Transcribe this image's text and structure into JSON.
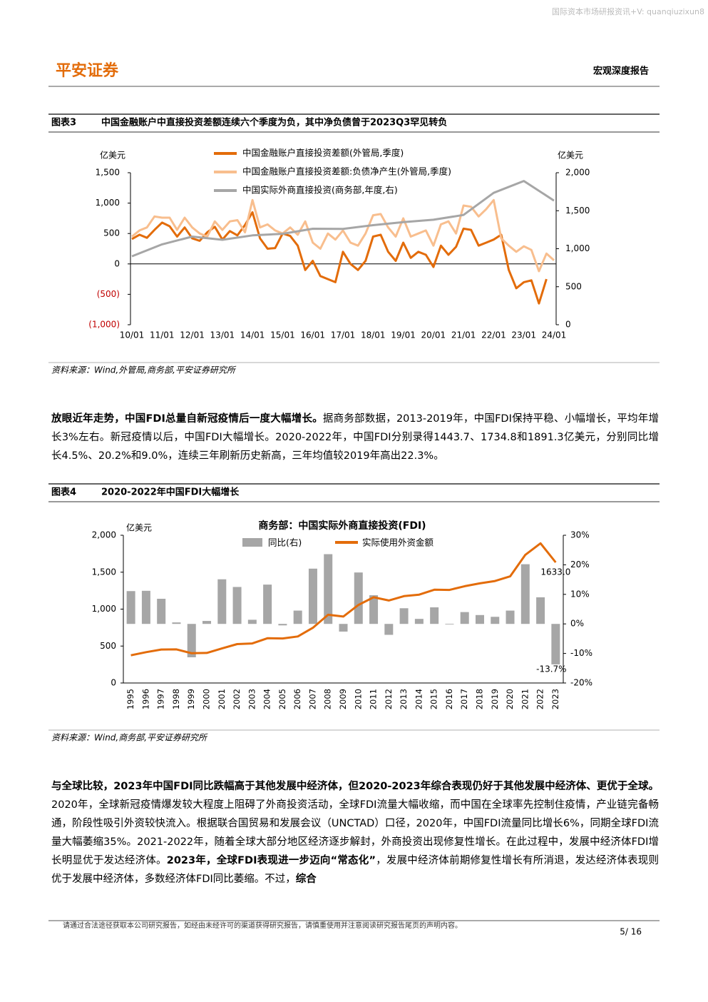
{
  "header": {
    "watermark": "国际资本市场研报资讯+V: quanqiuzixun8",
    "logo": "平安证券",
    "report_type": "宏观深度报告"
  },
  "chart_data": [
    {
      "type": "line",
      "label": "图表3",
      "caption": "中国金融账户中直接投资差额连续六个季度为负，其中净负债曾于2023Q3罕见转负",
      "ylabel": "亿美元",
      "y2label": "亿美元",
      "categories": [
        "10/01",
        null,
        null,
        null,
        "11/01",
        null,
        null,
        null,
        "12/01",
        null,
        null,
        null,
        "13/01",
        null,
        null,
        null,
        "14/01",
        null,
        null,
        null,
        "15/01",
        null,
        null,
        null,
        "16/01",
        null,
        null,
        null,
        "17/01",
        null,
        null,
        null,
        "18/01",
        null,
        null,
        null,
        "19/01",
        null,
        null,
        null,
        "20/01",
        null,
        null,
        null,
        "21/01",
        null,
        null,
        null,
        "22/01",
        null,
        null,
        null,
        "23/01",
        null,
        null,
        null,
        "24/01"
      ],
      "ylim": [
        -1000,
        1500
      ],
      "yticks": [
        {
          "value": -1000,
          "label": "(1,000)"
        },
        {
          "value": -500,
          "label": "(500)"
        },
        0,
        500,
        {
          "value": 1000,
          "label": "1,000"
        },
        {
          "value": 1500,
          "label": "1,500"
        }
      ],
      "y2lim": [
        0,
        2000
      ],
      "y2ticks": [
        0,
        500,
        {
          "value": 1000,
          "label": "1,000"
        },
        {
          "value": 1500,
          "label": "1,500"
        },
        {
          "value": 2000,
          "label": "2,000"
        }
      ],
      "series": [
        {
          "name": "中国金融账户直接投资差额(外管局,季度)",
          "color": "#E36C0A",
          "values": [
            410,
            480,
            430,
            560,
            680,
            620,
            450,
            600,
            420,
            380,
            520,
            610,
            400,
            540,
            470,
            640,
            850,
            420,
            250,
            260,
            500,
            460,
            300,
            -100,
            50,
            -200,
            -250,
            -300,
            200,
            0,
            -100,
            50,
            450,
            480,
            200,
            50,
            350,
            100,
            200,
            150,
            -50,
            300,
            150,
            280,
            580,
            560,
            300,
            350,
            400,
            480,
            -100,
            -400,
            -300,
            -270,
            -650,
            -250,
            null
          ]
        },
        {
          "name": "中国金融账户直接投资差额:负债净产生(外管局,季度)",
          "color": "#F8BE8E",
          "values": [
            450,
            550,
            600,
            780,
            760,
            760,
            560,
            760,
            600,
            500,
            450,
            700,
            560,
            700,
            720,
            520,
            1050,
            600,
            650,
            550,
            500,
            600,
            480,
            700,
            350,
            250,
            500,
            400,
            550,
            350,
            300,
            500,
            800,
            820,
            600,
            450,
            750,
            450,
            500,
            550,
            300,
            650,
            700,
            500,
            960,
            940,
            780,
            900,
            1050,
            420,
            300,
            200,
            290,
            230,
            -120,
            170,
            60
          ]
        },
        {
          "name": "中国实际外商直接投资(商务部,年度,右)",
          "color": "#A6A6A6",
          "axis": "y2",
          "x": [
            "10/01",
            "11/01",
            "12/01",
            "13/01",
            "14/01",
            "15/01",
            "16/01",
            "17/01",
            "18/01",
            "19/01",
            "20/01",
            "21/01",
            "22/01",
            "23/01",
            "24/01"
          ],
          "values": [
            900,
            1057,
            1160,
            1117,
            1176,
            1196,
            1263,
            1260,
            1310,
            1349,
            1381,
            1443.7,
            1734.8,
            1891.3,
            1633
          ]
        }
      ],
      "source": "资料来源：Wind,外管局,商务部,平安证券研究所"
    },
    {
      "type": "bar-line",
      "label": "图表4",
      "caption": "2020-2022年中国FDI大幅增长",
      "title": "商务部：中国实际外商直接投资(FDI)",
      "ylabel": "亿美元",
      "categories": [
        "1995",
        "1996",
        "1997",
        "1998",
        "1999",
        "2000",
        "2001",
        "2002",
        "2003",
        "2004",
        "2005",
        "2006",
        "2007",
        "2008",
        "2009",
        "2010",
        "2011",
        "2012",
        "2013",
        "2014",
        "2015",
        "2016",
        "2017",
        "2018",
        "2019",
        "2020",
        "2021",
        "2022",
        "2023"
      ],
      "ylim": [
        0,
        2000
      ],
      "yticks": [
        0,
        500,
        {
          "value": 1000,
          "label": "1,000"
        },
        {
          "value": 1500,
          "label": "1,500"
        },
        {
          "value": 2000,
          "label": "2,000"
        }
      ],
      "y2lim": [
        -20,
        30
      ],
      "y2ticks": [
        {
          "value": -20,
          "label": "-20%"
        },
        {
          "value": -10,
          "label": "-10%"
        },
        {
          "value": 0,
          "label": "0%"
        },
        {
          "value": 10,
          "label": "10%"
        },
        {
          "value": 20,
          "label": "20%"
        },
        {
          "value": 30,
          "label": "30%"
        }
      ],
      "series": [
        {
          "name": "同比(右)",
          "type": "bar",
          "axis": "y2",
          "color": "#A6A6A6",
          "values": [
            11.1,
            11.2,
            8.5,
            0.5,
            -11.3,
            1.0,
            15.1,
            12.5,
            1.4,
            13.3,
            -0.5,
            4.5,
            18.7,
            23.6,
            -2.6,
            17.4,
            9.7,
            -3.7,
            5.3,
            1.7,
            5.6,
            -0.2,
            4.0,
            3.0,
            2.4,
            4.5,
            20.2,
            9.0,
            -13.7
          ],
          "value_labels": [
            null,
            null,
            null,
            null,
            null,
            null,
            null,
            null,
            null,
            null,
            null,
            null,
            null,
            null,
            null,
            null,
            null,
            null,
            null,
            null,
            null,
            null,
            null,
            null,
            null,
            null,
            null,
            null,
            "-13.7%"
          ]
        },
        {
          "name": "实际使用外资金额",
          "type": "line",
          "color": "#E36C0A",
          "values": [
            375,
            417,
            453,
            455,
            403,
            407,
            468,
            527,
            535,
            606,
            603,
            630,
            748,
            924,
            900,
            1057,
            1160,
            1117,
            1176,
            1196,
            1263,
            1260,
            1310,
            1349,
            1381,
            1443.7,
            1734.8,
            1891.3,
            1633.0
          ],
          "value_labels": [
            null,
            null,
            null,
            null,
            null,
            null,
            null,
            null,
            null,
            null,
            null,
            null,
            null,
            null,
            null,
            null,
            null,
            null,
            null,
            null,
            null,
            null,
            null,
            null,
            null,
            null,
            null,
            null,
            "1633.0"
          ]
        }
      ],
      "source": "资料来源：Wind,商务部,平安证券研究所"
    }
  ],
  "paragraphs": [
    {
      "runs": [
        {
          "text": "放眼近年走势，中国FDI总量自新冠疫情后一度大幅增长。",
          "bold": true
        },
        {
          "text": "据商务部数据，2013-2019年，中国FDI保持平稳、小幅增长，平均年增长3%左右。新冠疫情以后，中国FDI大幅增长。2020-2022年，中国FDI分别录得1443.7、1734.8和1891.3亿美元，分别同比增长4.5%、20.2%和9.0%，连续三年刷新历史新高，三年均值较2019年高出22.3%。",
          "bold": false
        }
      ]
    },
    {
      "runs": [
        {
          "text": "与全球比较，2023年中国FDI同比跌幅高于其他发展中经济体，但2020-2023年综合表现仍好于其他发展中经济体、更优于全球。",
          "bold": true
        },
        {
          "text": "2020年，全球新冠疫情爆发较大程度上阻碍了外商投资活动，全球FDI流量大幅收缩，而中国在全球率先控制住疫情，产业链完备畅通，阶段性吸引外资较快流入。根据联合国贸易和发展会议（UNCTAD）口径，2020年，中国FDI流量同比增长6%，同期全球FDI流量大幅萎缩35%。2021-2022年，随着全球大部分地区经济逐步解封，外商投资出现修复性增长。在此过程中，发展中经济体FDI增长明显优于发达经济体。",
          "bold": false
        },
        {
          "text": "2023年，全球FDI表现进一步迈向“常态化”",
          "bold": true
        },
        {
          "text": "，发展中经济体前期修复性增长有所消退，发达经济体表现则优于发展中经济体，多数经济体FDI同比萎缩。不过，",
          "bold": false
        },
        {
          "text": "综合",
          "bold": true
        }
      ]
    }
  ],
  "footer": {
    "disclaimer": "请通过合法途径获取本公司研究报告，如经由未经许可的渠道获得研究报告，请慎重使用并注意阅读研究报告尾页的声明内容。",
    "page": "5/ 16"
  }
}
